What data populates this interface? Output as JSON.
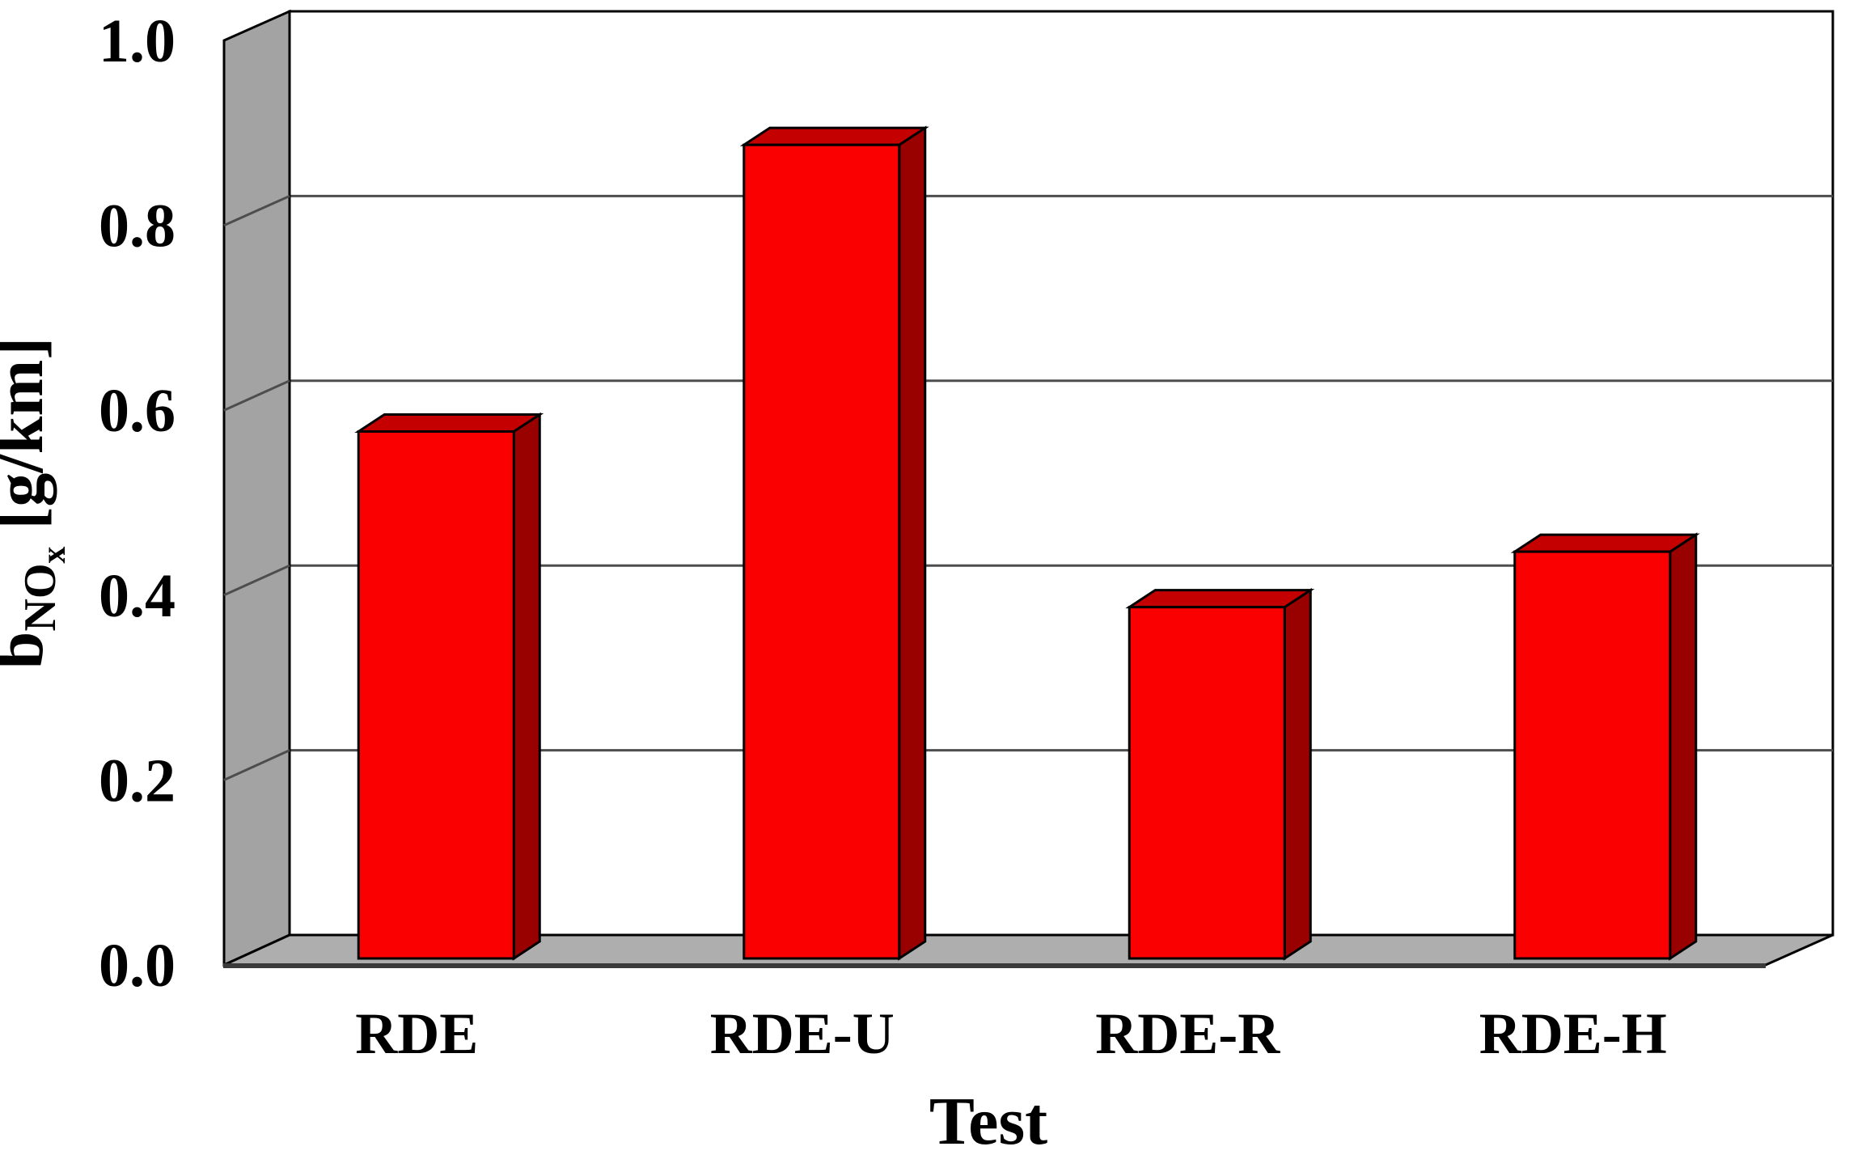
{
  "chart_data": {
    "type": "bar",
    "style": "pseudo-3d-bars",
    "title": "",
    "xlabel": "Test",
    "ylabel": "bNOx [g/km]",
    "ylabel_rich": {
      "base": "b",
      "sub": "NO",
      "subsub": "x",
      "unit": " [g/km]"
    },
    "categories": [
      "RDE",
      "RDE-U",
      "RDE-R",
      "RDE-H"
    ],
    "values": [
      0.57,
      0.88,
      0.38,
      0.44
    ],
    "series": [
      {
        "name": "bNOx",
        "values": [
          0.57,
          0.88,
          0.38,
          0.44
        ]
      }
    ],
    "ylim": [
      0.0,
      1.0
    ],
    "ytick_step": 0.2,
    "yticks": [
      "0.0",
      "0.2",
      "0.4",
      "0.6",
      "0.8",
      "1.0"
    ],
    "grid": true,
    "legend": null,
    "colors": {
      "bar_front": "#fb0000",
      "bar_side": "#990000",
      "bar_top": "#c40000",
      "bar_outline": "#000000",
      "wall_side": "#a3a3a3",
      "floor": "#aeaeae",
      "back_wall": "#ffffff",
      "gridline": "#4d4d4d",
      "frame": "#000000",
      "baseline": "#3a3a3a",
      "text": "#000000",
      "background": "#ffffff"
    }
  }
}
